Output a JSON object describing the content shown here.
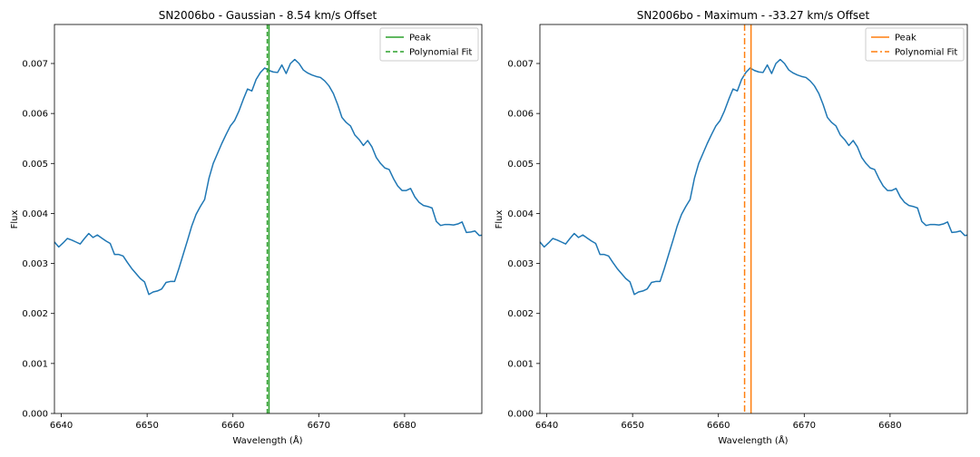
{
  "chart_data": [
    {
      "type": "line",
      "title": "SN2006bo - Gaussian - 8.54 km/s Offset",
      "xlabel": "Wavelength (Å)",
      "ylabel": "Flux",
      "xlim": [
        6639.2,
        6689.0
      ],
      "ylim": [
        0.0,
        0.00778
      ],
      "xticks": [
        6640,
        6650,
        6660,
        6670,
        6680
      ],
      "yticks": [
        0.0,
        0.001,
        0.002,
        0.003,
        0.004,
        0.005,
        0.006,
        0.007
      ],
      "ytick_labels": [
        "0.000",
        "0.001",
        "0.002",
        "0.003",
        "0.004",
        "0.005",
        "0.006",
        "0.007"
      ],
      "grid": false,
      "legend_position": "top-right",
      "series": [
        {
          "color": "#1f77b4",
          "x_start": 6639.2,
          "x_step": 0.5,
          "y": [
            0.00343,
            0.00333,
            0.00341,
            0.0035,
            0.00347,
            0.00343,
            0.00339,
            0.0035,
            0.0036,
            0.00352,
            0.00357,
            0.00351,
            0.00345,
            0.0034,
            0.00318,
            0.00318,
            0.00315,
            0.00302,
            0.0029,
            0.0028,
            0.0027,
            0.00263,
            0.00238,
            0.00243,
            0.00245,
            0.00249,
            0.00262,
            0.00264,
            0.00264,
            0.0029,
            0.00318,
            0.00346,
            0.00375,
            0.00398,
            0.00414,
            0.00428,
            0.0047,
            0.005,
            0.0052,
            0.0054,
            0.00558,
            0.00575,
            0.00586,
            0.00605,
            0.00628,
            0.00649,
            0.00645,
            0.00668,
            0.00682,
            0.00691,
            0.00686,
            0.00683,
            0.00682,
            0.00697,
            0.0068,
            0.007,
            0.00708,
            0.007,
            0.00687,
            0.00681,
            0.00677,
            0.00674,
            0.00672,
            0.00665,
            0.00655,
            0.0064,
            0.00618,
            0.00592,
            0.00582,
            0.00575,
            0.00557,
            0.00548,
            0.00536,
            0.00546,
            0.00533,
            0.00512,
            0.005,
            0.00491,
            0.00488,
            0.0047,
            0.00455,
            0.00446,
            0.00446,
            0.0045,
            0.00433,
            0.00422,
            0.00416,
            0.00414,
            0.00411,
            0.00384,
            0.00376,
            0.00378,
            0.00378,
            0.00377,
            0.00379,
            0.00383,
            0.00362,
            0.00363,
            0.00365,
            0.00356,
            0.00357,
            0.00356,
            0.00341,
            0.00338,
            0.00343
          ]
        },
        {
          "name": "Peak",
          "color": "#2ca02c",
          "style": "solid",
          "vline_x": 6664.2
        },
        {
          "name": "Polynomial Fit",
          "color": "#2ca02c",
          "style": "dashed",
          "vline_x": 6664.0
        }
      ]
    },
    {
      "type": "line",
      "title": "SN2006bo - Maximum - -33.27 km/s Offset",
      "xlabel": "Wavelength (Å)",
      "ylabel": "Flux",
      "xlim": [
        6639.2,
        6689.0
      ],
      "ylim": [
        0.0,
        0.00778
      ],
      "xticks": [
        6640,
        6650,
        6660,
        6670,
        6680
      ],
      "yticks": [
        0.0,
        0.001,
        0.002,
        0.003,
        0.004,
        0.005,
        0.006,
        0.007
      ],
      "ytick_labels": [
        "0.000",
        "0.001",
        "0.002",
        "0.003",
        "0.004",
        "0.005",
        "0.006",
        "0.007"
      ],
      "grid": false,
      "legend_position": "top-right",
      "series": [
        {
          "color": "#1f77b4",
          "x_start": 6639.2,
          "x_step": 0.5,
          "y": [
            0.00343,
            0.00333,
            0.00341,
            0.0035,
            0.00347,
            0.00343,
            0.00339,
            0.0035,
            0.0036,
            0.00352,
            0.00357,
            0.00351,
            0.00345,
            0.0034,
            0.00318,
            0.00318,
            0.00315,
            0.00302,
            0.0029,
            0.0028,
            0.0027,
            0.00263,
            0.00238,
            0.00243,
            0.00245,
            0.00249,
            0.00262,
            0.00264,
            0.00264,
            0.0029,
            0.00318,
            0.00346,
            0.00375,
            0.00398,
            0.00414,
            0.00428,
            0.0047,
            0.005,
            0.0052,
            0.0054,
            0.00558,
            0.00575,
            0.00586,
            0.00605,
            0.00628,
            0.00649,
            0.00645,
            0.00668,
            0.00682,
            0.00691,
            0.00686,
            0.00683,
            0.00682,
            0.00697,
            0.0068,
            0.007,
            0.00708,
            0.007,
            0.00687,
            0.00681,
            0.00677,
            0.00674,
            0.00672,
            0.00665,
            0.00655,
            0.0064,
            0.00618,
            0.00592,
            0.00582,
            0.00575,
            0.00557,
            0.00548,
            0.00536,
            0.00546,
            0.00533,
            0.00512,
            0.005,
            0.00491,
            0.00488,
            0.0047,
            0.00455,
            0.00446,
            0.00446,
            0.0045,
            0.00433,
            0.00422,
            0.00416,
            0.00414,
            0.00411,
            0.00384,
            0.00376,
            0.00378,
            0.00378,
            0.00377,
            0.00379,
            0.00383,
            0.00362,
            0.00363,
            0.00365,
            0.00356,
            0.00357,
            0.00356,
            0.00341,
            0.00338,
            0.00343
          ]
        },
        {
          "name": "Peak",
          "color": "#ff7f0e",
          "style": "solid",
          "vline_x": 6663.8
        },
        {
          "name": "Polynomial Fit",
          "color": "#ff7f0e",
          "style": "dashdot",
          "vline_x": 6663.05
        }
      ]
    }
  ]
}
